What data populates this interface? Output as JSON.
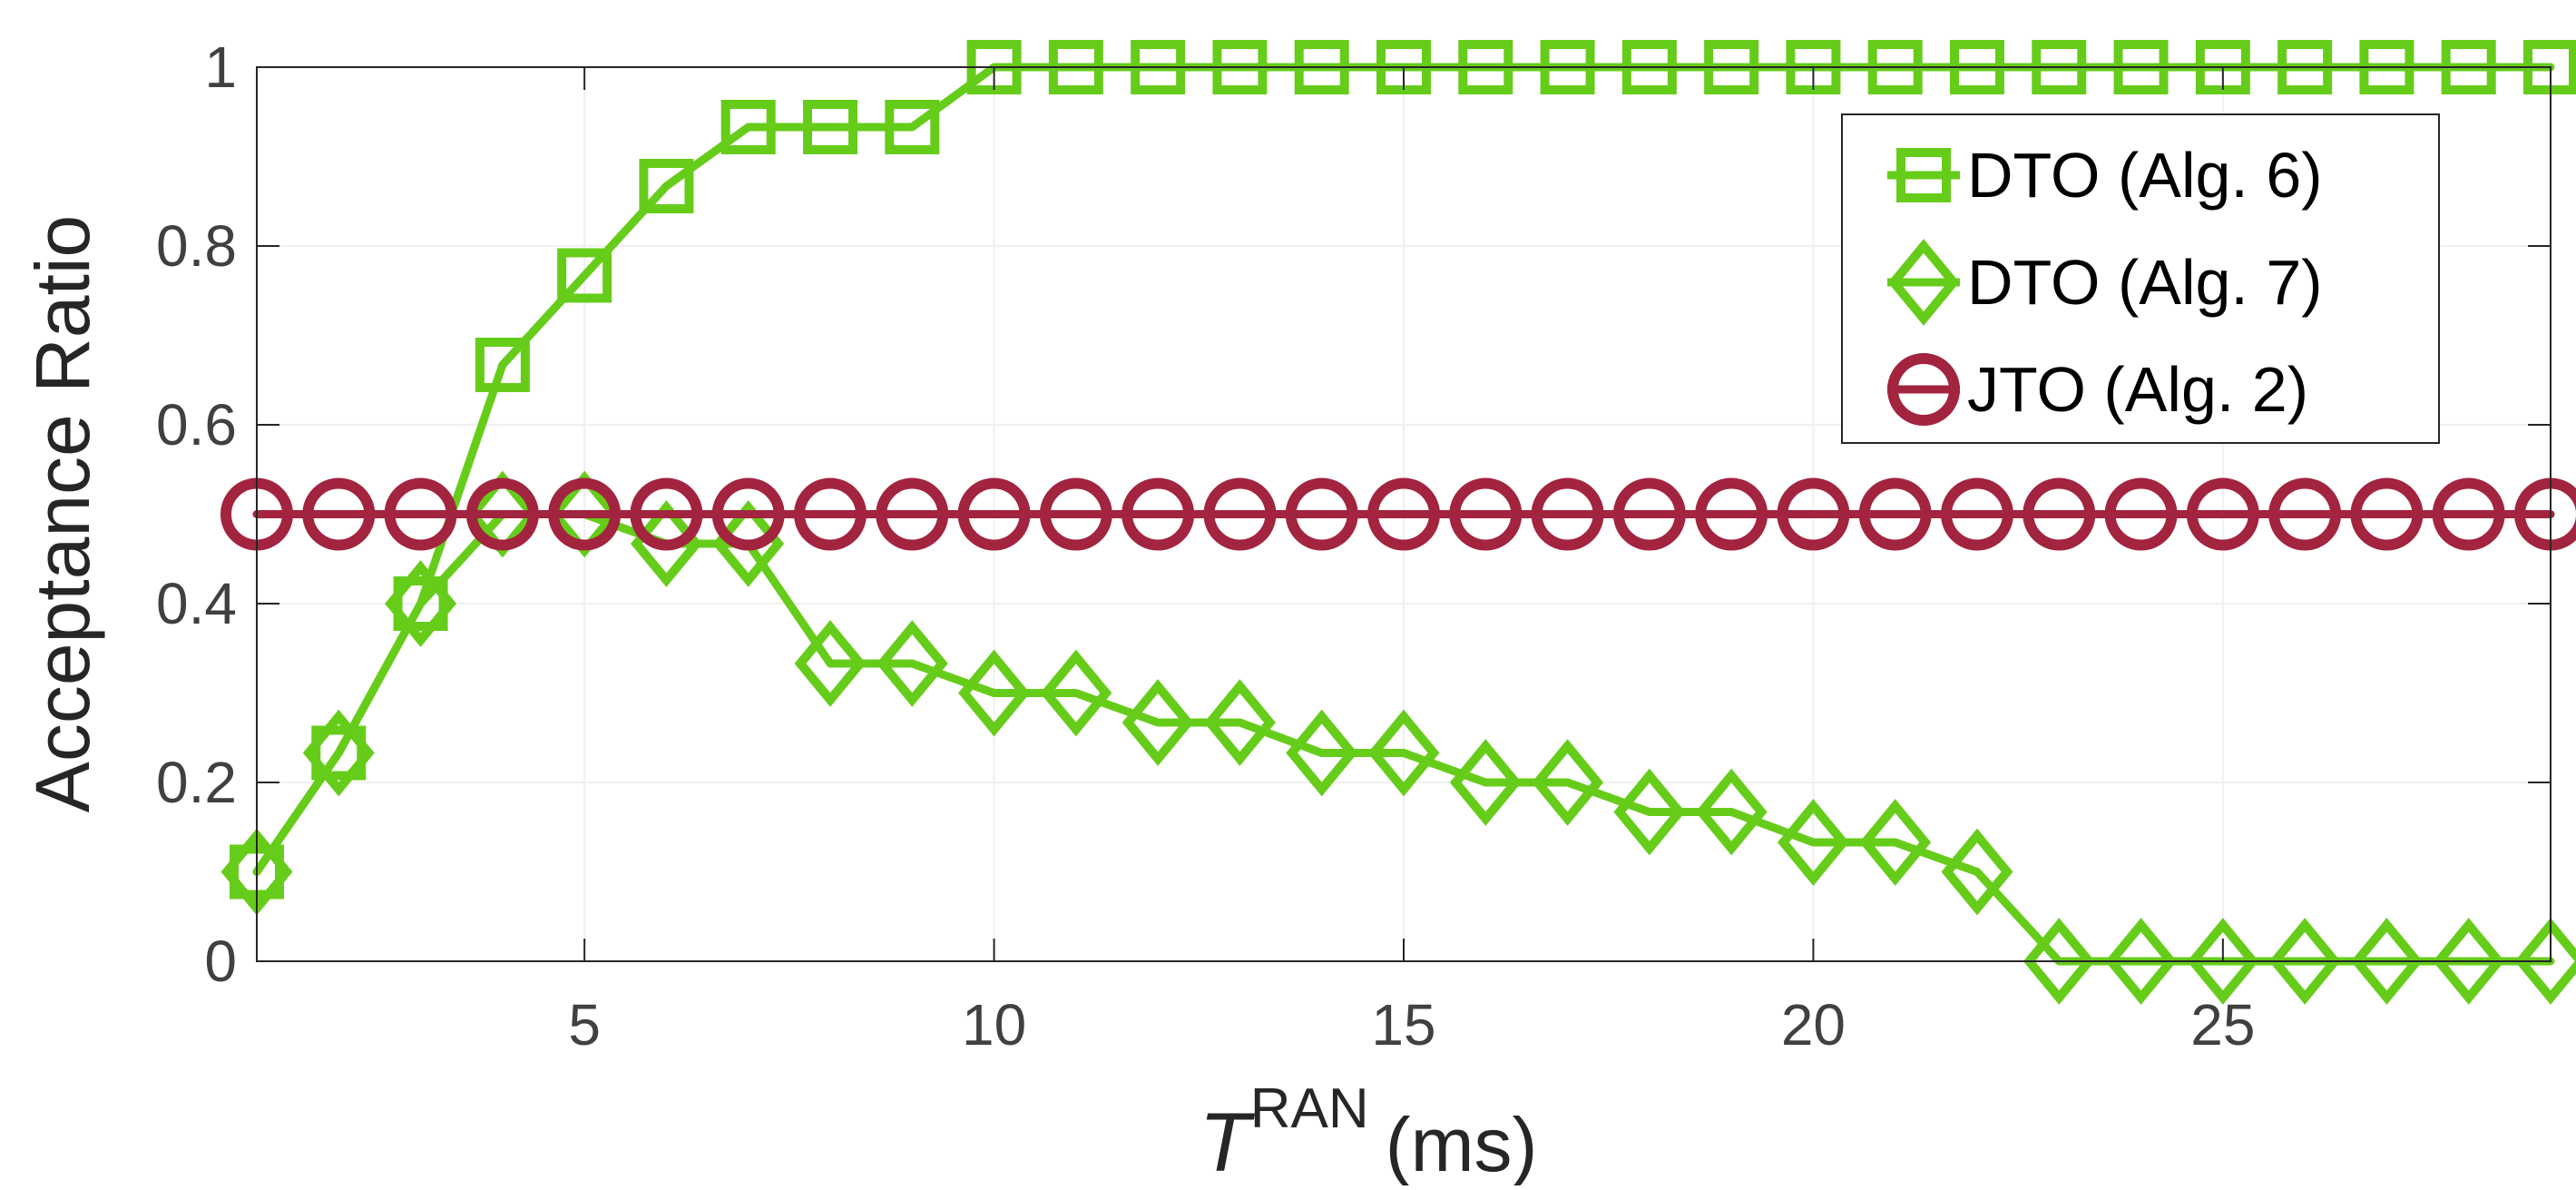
{
  "chart_data": {
    "type": "line",
    "title": "",
    "xlabel": {
      "symbol": "T",
      "superscript": "RAN",
      "unit": "(ms)"
    },
    "ylabel": "Acceptance Ratio",
    "xlim": [
      1,
      29
    ],
    "ylim": [
      0,
      1
    ],
    "xticks": [
      5,
      10,
      15,
      20,
      25
    ],
    "yticks": [
      0,
      0.2,
      0.4,
      0.6,
      0.8,
      1
    ],
    "ytick_labels": [
      "0",
      "0.2",
      "0.4",
      "0.6",
      "0.8",
      "1"
    ],
    "grid": true,
    "legend_position": "top-right",
    "x": [
      1,
      2,
      3,
      4,
      5,
      6,
      7,
      8,
      9,
      10,
      11,
      12,
      13,
      14,
      15,
      16,
      17,
      18,
      19,
      20,
      21,
      22,
      23,
      24,
      25,
      26,
      27,
      28,
      29
    ],
    "series": [
      {
        "name": "DTO (Alg. 6)",
        "marker": "square",
        "color": "#66cc1a",
        "values": [
          0.1,
          0.233,
          0.4,
          0.667,
          0.767,
          0.867,
          0.933,
          0.933,
          0.933,
          1,
          1,
          1,
          1,
          1,
          1,
          1,
          1,
          1,
          1,
          1,
          1,
          1,
          1,
          1,
          1,
          1,
          1,
          1,
          1
        ]
      },
      {
        "name": "DTO (Alg. 7)",
        "marker": "diamond",
        "color": "#66cc1a",
        "values": [
          0.1,
          0.233,
          0.4,
          0.5,
          0.5,
          0.467,
          0.467,
          0.333,
          0.333,
          0.3,
          0.3,
          0.267,
          0.267,
          0.233,
          0.233,
          0.2,
          0.2,
          0.167,
          0.167,
          0.133,
          0.133,
          0.1,
          0,
          0,
          0,
          0,
          0,
          0,
          0
        ]
      },
      {
        "name": "JTO (Alg. 2)",
        "marker": "circle",
        "color": "#a2243f",
        "values": [
          0.5,
          0.5,
          0.5,
          0.5,
          0.5,
          0.5,
          0.5,
          0.5,
          0.5,
          0.5,
          0.5,
          0.5,
          0.5,
          0.5,
          0.5,
          0.5,
          0.5,
          0.5,
          0.5,
          0.5,
          0.5,
          0.5,
          0.5,
          0.5,
          0.5,
          0.5,
          0.5,
          0.5,
          0.5
        ]
      }
    ]
  }
}
